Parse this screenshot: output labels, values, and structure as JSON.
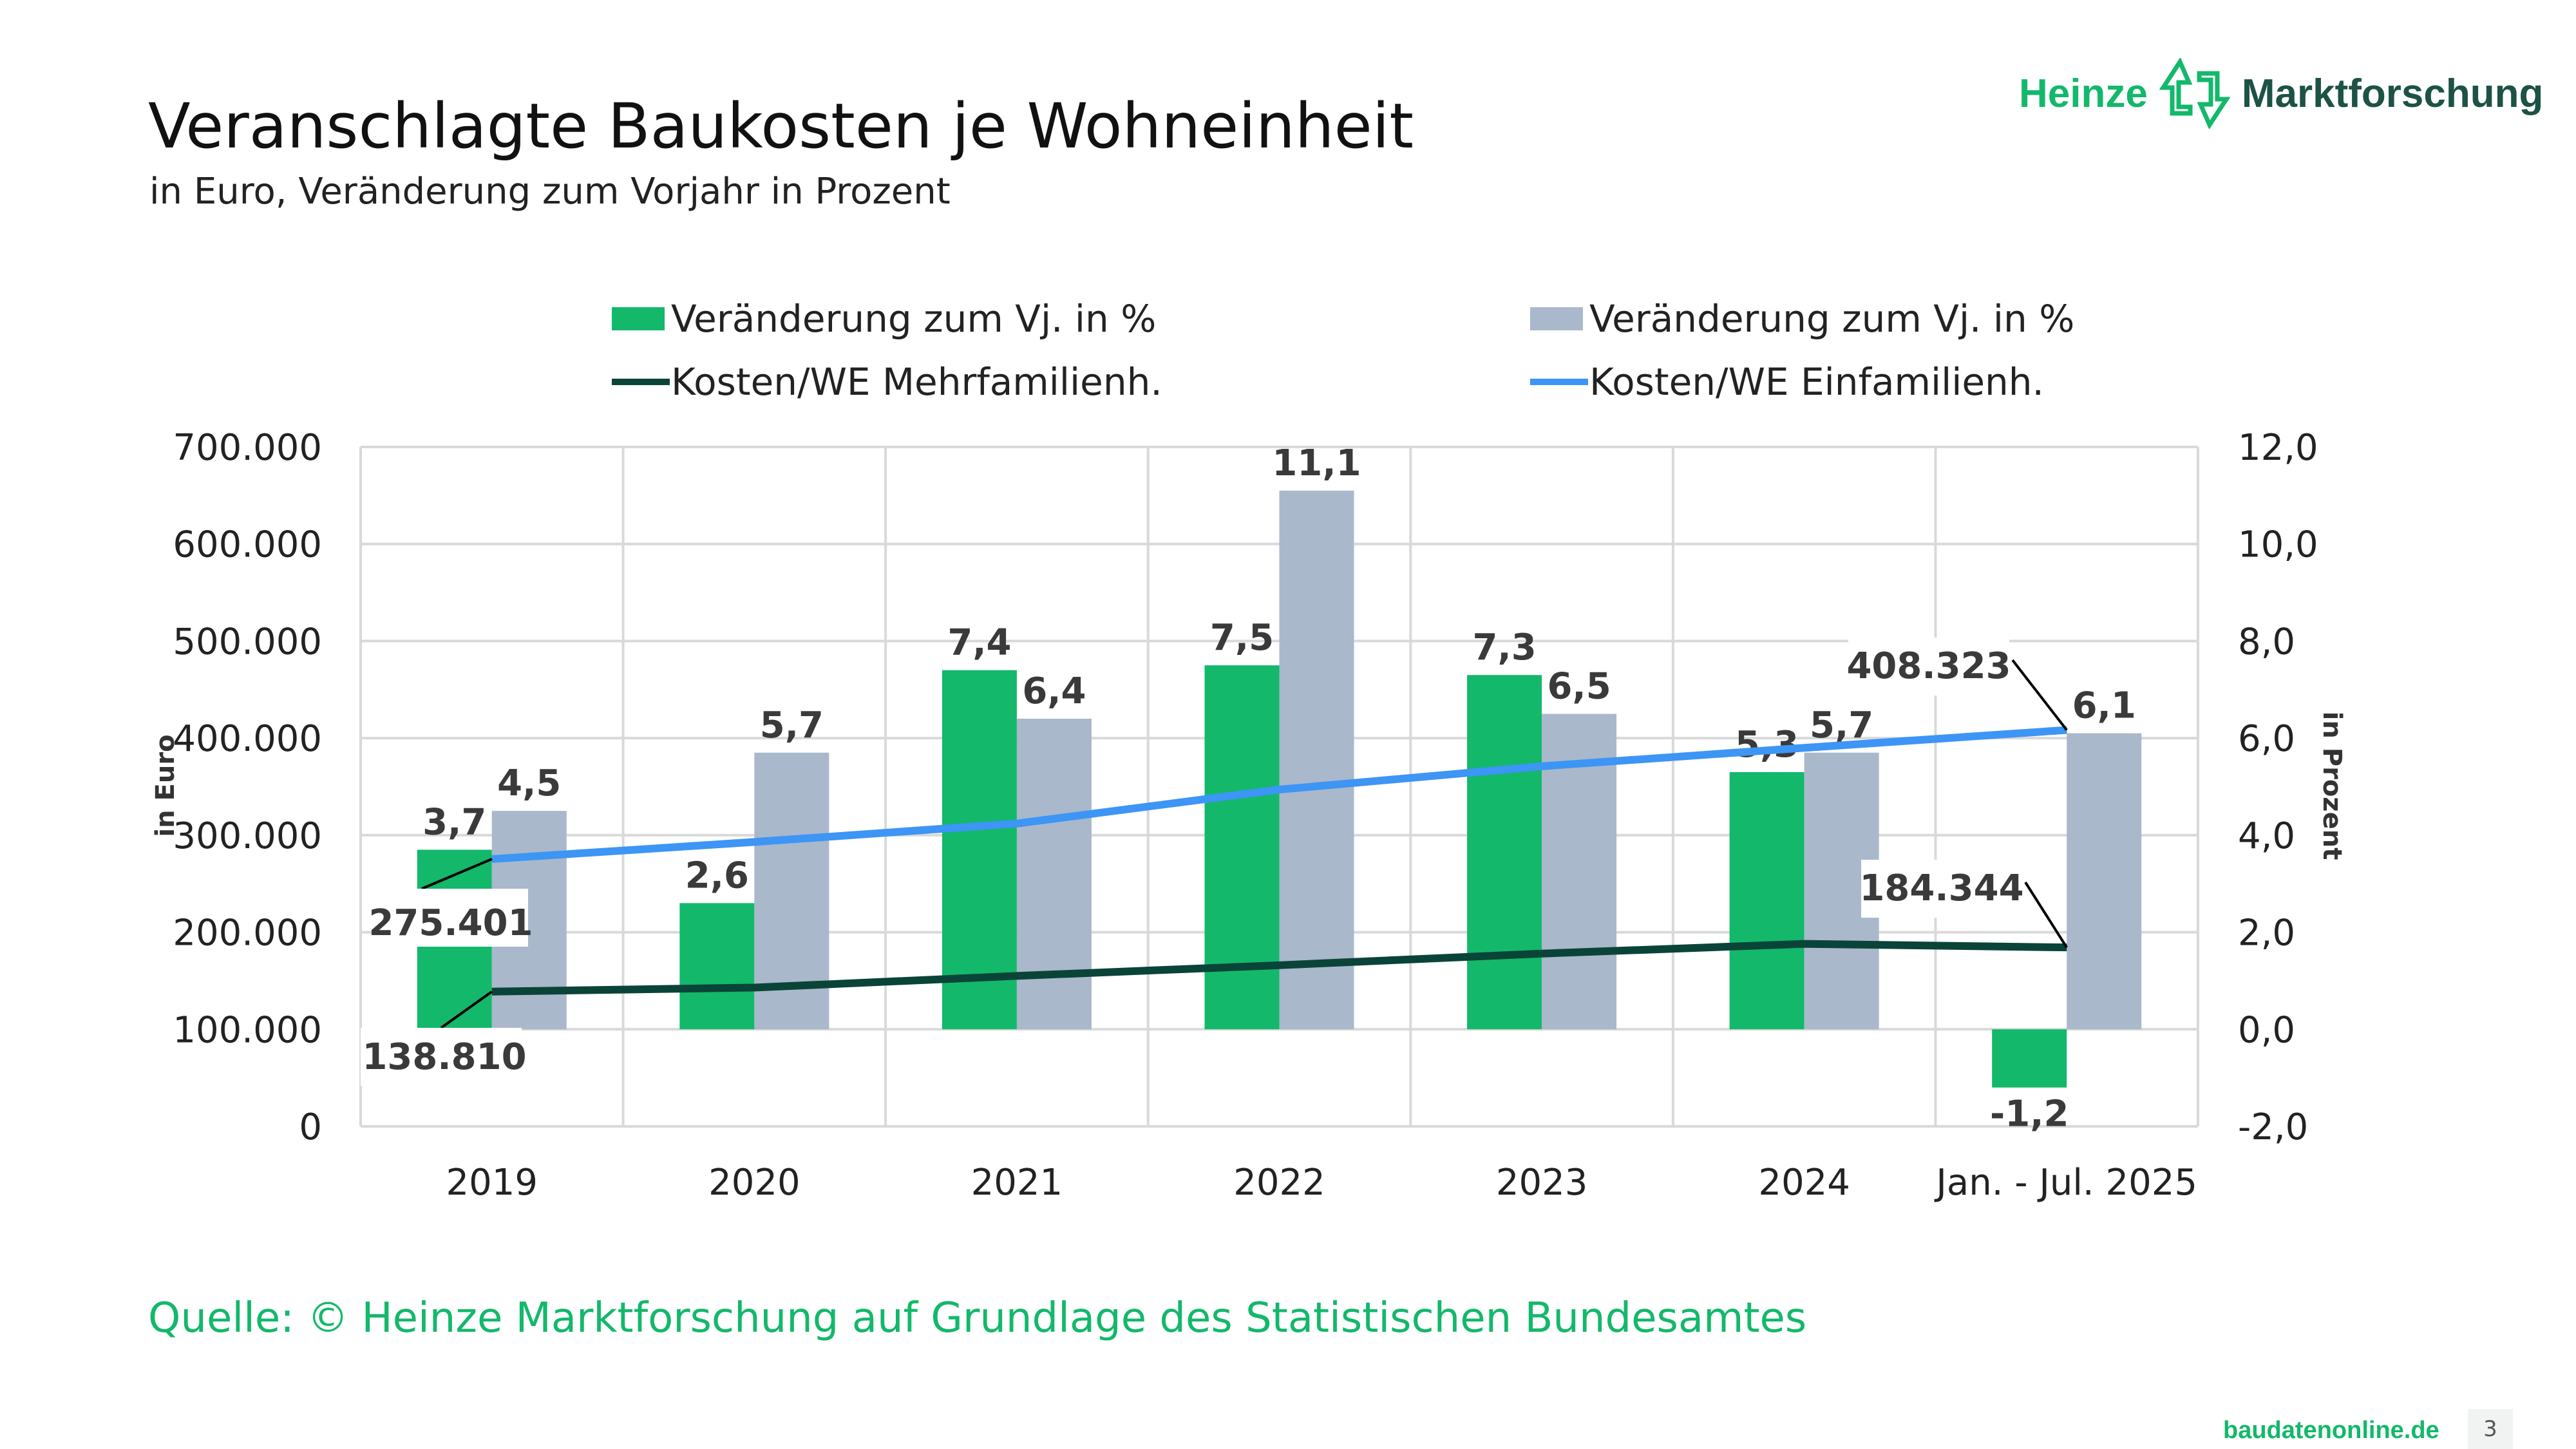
{
  "header": {
    "title": "Veranschlagte Baukosten je Wohneinheit",
    "subtitle": "in Euro, Veränderung zum Vorjahr in Prozent",
    "logo": {
      "part1": "Heinze",
      "part2": "Marktforschung",
      "icon": "up-down-arrows-icon"
    }
  },
  "footer": {
    "source": "Quelle: © Heinze Marktforschung auf Grundlage des Statistischen Bundesamtes",
    "site": "baudatenonline.de",
    "page_number": "3"
  },
  "chart_data": {
    "type": "bar",
    "categories": [
      "2019",
      "2020",
      "2021",
      "2022",
      "2023",
      "2024",
      "Jan. - Jul. 2025"
    ],
    "ylabel": "in Euro",
    "ylabel_right": "in Prozent",
    "ylim": [
      0,
      700000
    ],
    "ylim_right": [
      -2,
      12
    ],
    "yticks": [
      "0",
      "100.000",
      "200.000",
      "300.000",
      "400.000",
      "500.000",
      "600.000",
      "700.000"
    ],
    "yticks_right": [
      "-2,0",
      "0,0",
      "2,0",
      "4,0",
      "6,0",
      "8,0",
      "10,0",
      "12,0"
    ],
    "grid": true,
    "legend_position": "top",
    "series": [
      {
        "name": "Veränderung zum Vj. in %",
        "type": "bar",
        "axis": "right",
        "color": "#13b86b",
        "values": [
          3.7,
          2.6,
          7.4,
          7.5,
          7.3,
          5.3,
          -1.2
        ],
        "labels": [
          "3,7",
          "2,6",
          "7,4",
          "7,5",
          "7,3",
          "5,3",
          "-1,2"
        ]
      },
      {
        "name": "Veränderung zum Vj. in %",
        "type": "bar",
        "axis": "right",
        "color": "#a9b8ca",
        "values": [
          4.5,
          5.7,
          6.4,
          11.1,
          6.5,
          5.7,
          6.1
        ],
        "labels": [
          "4,5",
          "5,7",
          "6,4",
          "11,1",
          "6,5",
          "5,7",
          "6,1"
        ]
      },
      {
        "name": "Kosten/WE Mehrfamilienh.",
        "type": "line",
        "axis": "left",
        "color": "#0a4438",
        "values": [
          138810,
          143000,
          155000,
          166000,
          178000,
          188000,
          184344
        ],
        "point_labels": {
          "0": "138.810",
          "6": "184.344"
        }
      },
      {
        "name": "Kosten/WE Einfamilienh.",
        "type": "line",
        "axis": "left",
        "color": "#3d95f5",
        "values": [
          275401,
          293000,
          312000,
          347000,
          371000,
          390000,
          408323
        ],
        "point_labels": {
          "0": "275.401",
          "6": "408.323"
        }
      }
    ]
  }
}
